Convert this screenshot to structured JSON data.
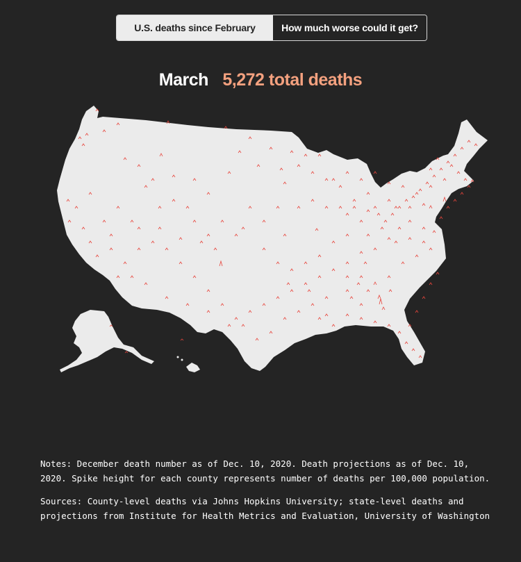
{
  "toggle": {
    "options": [
      {
        "label": "U.S. deaths since February",
        "active": true
      },
      {
        "label": "How much worse could it get?",
        "active": false
      }
    ]
  },
  "headline": {
    "month": "March",
    "total": "5,272 total deaths"
  },
  "map": {
    "land_color": "#ebebeb",
    "spike_color": "#e8453c",
    "background": "#242424"
  },
  "notes": {
    "notes_text": "Notes: December death number as of Dec. 10, 2020. Death projections as of Dec. 10, 2020. Spike height for each county represents number of deaths per 100,000 population.",
    "sources_text": "Sources: County-level deaths via Johns Hopkins University; state-level deaths and projections from Institute for Health Metrics and Evaluation, University of Washington"
  }
}
